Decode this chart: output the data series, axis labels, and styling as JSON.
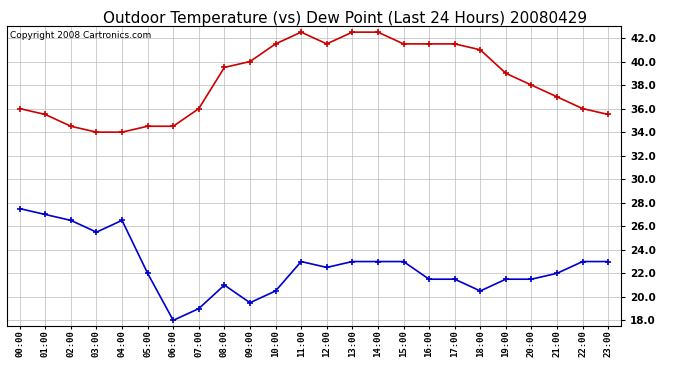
{
  "title": "Outdoor Temperature (vs) Dew Point (Last 24 Hours) 20080429",
  "copyright": "Copyright 2008 Cartronics.com",
  "x_labels": [
    "00:00",
    "01:00",
    "02:00",
    "03:00",
    "04:00",
    "05:00",
    "06:00",
    "07:00",
    "08:00",
    "09:00",
    "10:00",
    "11:00",
    "12:00",
    "13:00",
    "14:00",
    "15:00",
    "16:00",
    "17:00",
    "18:00",
    "19:00",
    "20:00",
    "21:00",
    "22:00",
    "23:00"
  ],
  "temp_data": [
    36.0,
    35.5,
    34.5,
    34.0,
    34.0,
    34.5,
    34.5,
    36.0,
    39.5,
    40.0,
    41.5,
    42.5,
    41.5,
    42.5,
    42.5,
    41.5,
    41.5,
    41.5,
    41.0,
    39.0,
    38.0,
    37.0,
    36.0,
    35.5
  ],
  "dew_data": [
    27.5,
    27.0,
    26.5,
    25.5,
    26.5,
    22.0,
    18.0,
    19.0,
    21.0,
    19.5,
    20.5,
    23.0,
    22.5,
    23.0,
    23.0,
    23.0,
    21.5,
    21.5,
    20.5,
    21.5,
    21.5,
    22.0,
    23.0,
    23.0
  ],
  "temp_color": "#cc0000",
  "dew_color": "#0000cc",
  "ylim": [
    17.5,
    43.0
  ],
  "yticks": [
    18.0,
    20.0,
    22.0,
    24.0,
    26.0,
    28.0,
    30.0,
    32.0,
    34.0,
    36.0,
    38.0,
    40.0,
    42.0
  ],
  "bg_color": "#ffffff",
  "grid_color": "#bbbbbb",
  "title_fontsize": 11,
  "copyright_fontsize": 6.5
}
